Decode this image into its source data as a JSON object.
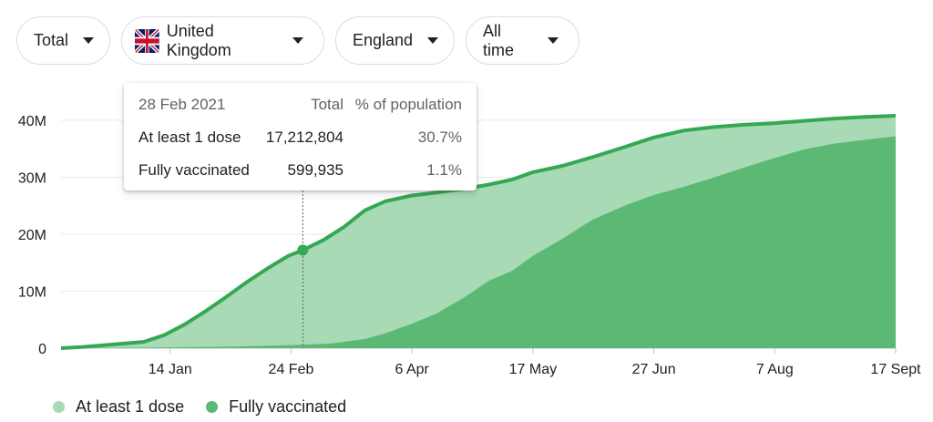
{
  "filters": {
    "measure": "Total",
    "country": "United Kingdom",
    "region": "England",
    "period": "All time"
  },
  "icons": {
    "caret": "dropdown-caret-icon",
    "flag": "united-kingdom-flag-icon"
  },
  "tooltip": {
    "date": "28 Feb 2021",
    "col_total": "Total",
    "col_percent": "% of population",
    "rows": [
      {
        "label": "At least 1 dose",
        "total": "17,212,804",
        "percent": "30.7%"
      },
      {
        "label": "Fully vaccinated",
        "total": "599,935",
        "percent": "1.1%"
      }
    ]
  },
  "colors": {
    "dose1_fill": "#a8dab5",
    "dose1_line": "#34a853",
    "full_fill": "#5bb974",
    "grid": "#e8eaed",
    "axis": "#bdc1c6",
    "text": "#202124"
  },
  "chart_data": {
    "type": "area",
    "x_axis": "date",
    "x_range": [
      "2020-12-08",
      "2021-09-17"
    ],
    "ylim": [
      0,
      41000000
    ],
    "y_ticks": [
      {
        "value": 0,
        "label": "0"
      },
      {
        "value": 10000000,
        "label": "10M"
      },
      {
        "value": 20000000,
        "label": "20M"
      },
      {
        "value": 30000000,
        "label": "30M"
      },
      {
        "value": 40000000,
        "label": "40M"
      }
    ],
    "x_ticks": [
      {
        "date": "2021-01-14",
        "label": "14 Jan"
      },
      {
        "date": "2021-02-24",
        "label": "24 Feb"
      },
      {
        "date": "2021-04-06",
        "label": "6 Apr"
      },
      {
        "date": "2021-05-17",
        "label": "17 May"
      },
      {
        "date": "2021-06-27",
        "label": "27 Jun"
      },
      {
        "date": "2021-08-07",
        "label": "7 Aug"
      },
      {
        "date": "2021-09-17",
        "label": "17 Sept"
      }
    ],
    "highlight": {
      "date": "2021-02-28",
      "value": 17212804
    },
    "grid": true,
    "legend_position": "bottom-left",
    "series": [
      {
        "name": "At least 1 dose",
        "points": [
          [
            "2020-12-08",
            0
          ],
          [
            "2020-12-15",
            200000
          ],
          [
            "2020-12-22",
            500000
          ],
          [
            "2020-12-29",
            800000
          ],
          [
            "2021-01-05",
            1100000
          ],
          [
            "2021-01-12",
            2300000
          ],
          [
            "2021-01-19",
            4200000
          ],
          [
            "2021-01-26",
            6500000
          ],
          [
            "2021-02-02",
            9000000
          ],
          [
            "2021-02-09",
            11600000
          ],
          [
            "2021-02-16",
            14000000
          ],
          [
            "2021-02-23",
            16200000
          ],
          [
            "2021-02-28",
            17212804
          ],
          [
            "2021-03-07",
            19000000
          ],
          [
            "2021-03-14",
            21300000
          ],
          [
            "2021-03-21",
            24200000
          ],
          [
            "2021-03-28",
            25800000
          ],
          [
            "2021-04-06",
            26800000
          ],
          [
            "2021-04-14",
            27300000
          ],
          [
            "2021-04-24",
            28000000
          ],
          [
            "2021-05-02",
            28700000
          ],
          [
            "2021-05-10",
            29600000
          ],
          [
            "2021-05-17",
            30900000
          ],
          [
            "2021-05-27",
            32000000
          ],
          [
            "2021-06-06",
            33500000
          ],
          [
            "2021-06-17",
            35300000
          ],
          [
            "2021-06-27",
            37000000
          ],
          [
            "2021-07-07",
            38200000
          ],
          [
            "2021-07-17",
            38800000
          ],
          [
            "2021-07-27",
            39200000
          ],
          [
            "2021-08-07",
            39500000
          ],
          [
            "2021-08-17",
            39900000
          ],
          [
            "2021-08-27",
            40300000
          ],
          [
            "2021-09-07",
            40600000
          ],
          [
            "2021-09-17",
            40800000
          ]
        ]
      },
      {
        "name": "Fully vaccinated",
        "points": [
          [
            "2020-12-08",
            0
          ],
          [
            "2021-01-05",
            100000
          ],
          [
            "2021-02-03",
            250000
          ],
          [
            "2021-02-28",
            599935
          ],
          [
            "2021-03-10",
            850000
          ],
          [
            "2021-03-21",
            1600000
          ],
          [
            "2021-03-28",
            2600000
          ],
          [
            "2021-04-06",
            4300000
          ],
          [
            "2021-04-14",
            6000000
          ],
          [
            "2021-04-24",
            9000000
          ],
          [
            "2021-05-02",
            11800000
          ],
          [
            "2021-05-10",
            13600000
          ],
          [
            "2021-05-17",
            16200000
          ],
          [
            "2021-05-27",
            19200000
          ],
          [
            "2021-06-06",
            22500000
          ],
          [
            "2021-06-17",
            25000000
          ],
          [
            "2021-06-27",
            26900000
          ],
          [
            "2021-07-07",
            28300000
          ],
          [
            "2021-07-17",
            29900000
          ],
          [
            "2021-07-27",
            31600000
          ],
          [
            "2021-08-07",
            33400000
          ],
          [
            "2021-08-17",
            34900000
          ],
          [
            "2021-08-27",
            35900000
          ],
          [
            "2021-09-07",
            36600000
          ],
          [
            "2021-09-17",
            37200000
          ]
        ]
      }
    ]
  }
}
